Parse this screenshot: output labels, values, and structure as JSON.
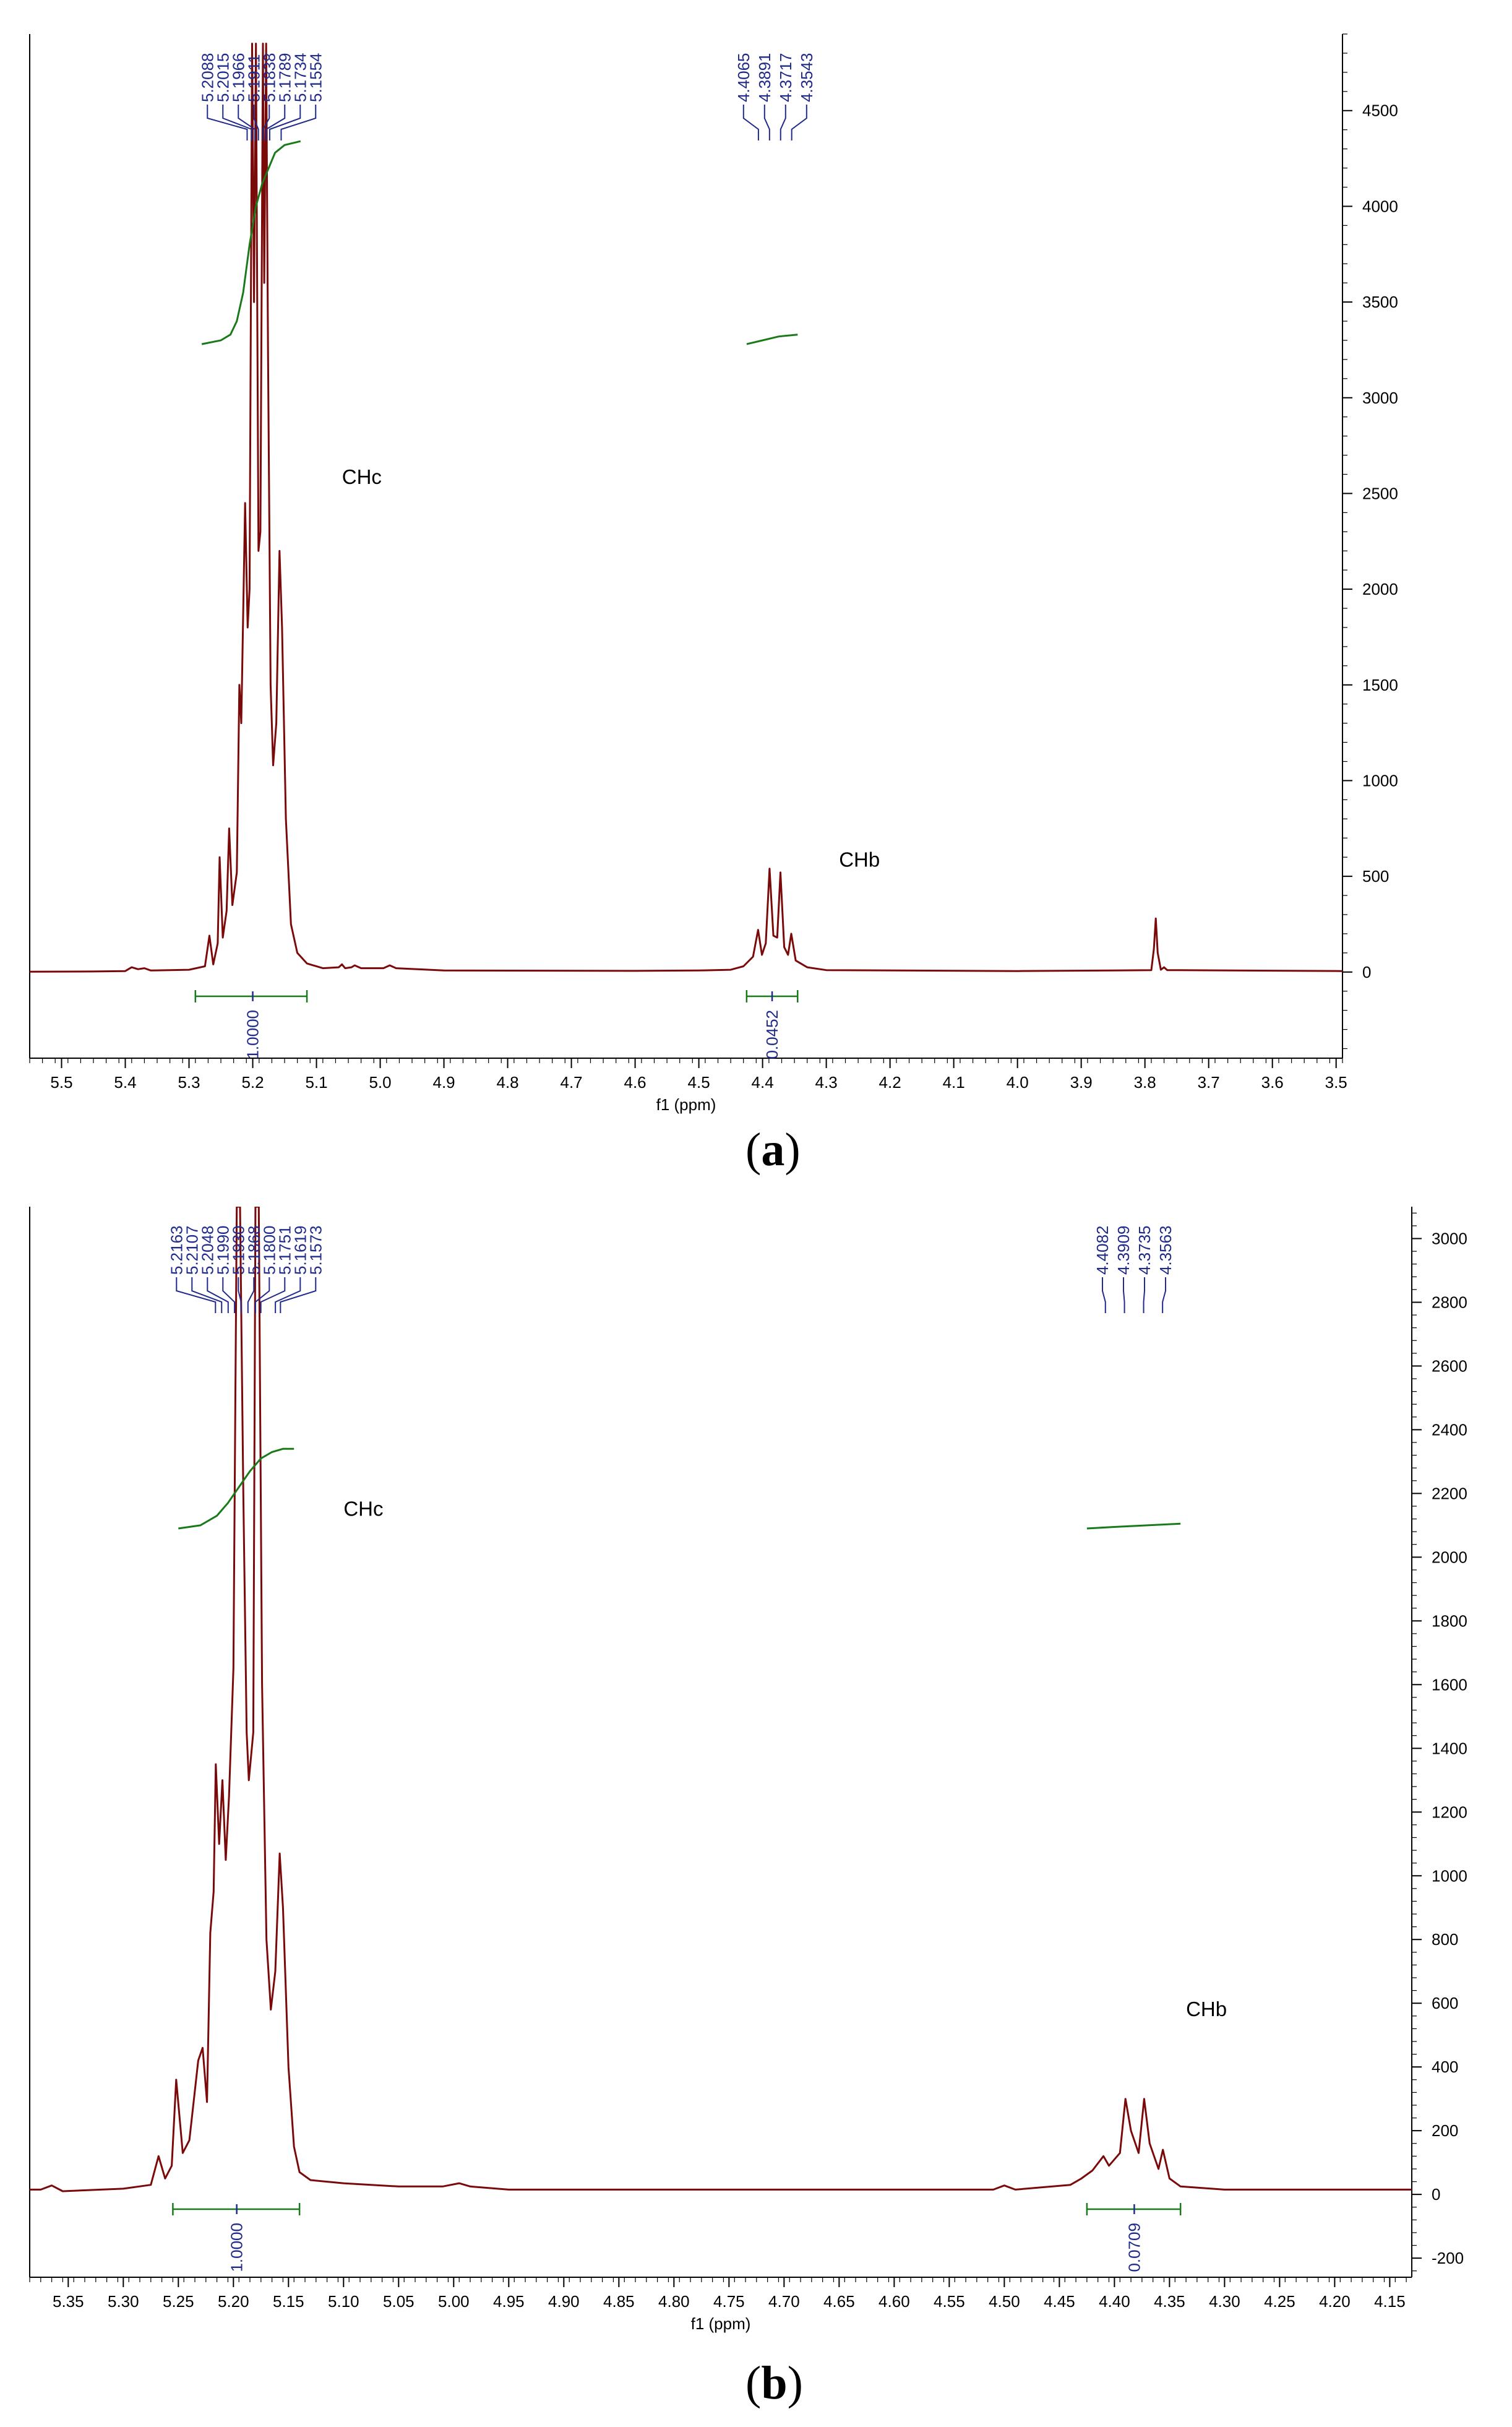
{
  "colors": {
    "spectrum": "#7a0a0a",
    "integral": "#1a7a1a",
    "peak_label": "#1f2a8a",
    "axis": "#000000"
  },
  "chart_data": [
    {
      "panel": "a",
      "type": "line",
      "xlabel": "f1 (ppm)",
      "xlim": [
        5.55,
        3.49
      ],
      "ylim": [
        -450,
        4900
      ],
      "x_ticks": [
        "5.5",
        "5.4",
        "5.3",
        "5.2",
        "5.1",
        "5.0",
        "4.9",
        "4.8",
        "4.7",
        "4.6",
        "4.5",
        "4.4",
        "4.3",
        "4.2",
        "4.1",
        "4.0",
        "3.9",
        "3.8",
        "3.7",
        "3.6",
        "3.5"
      ],
      "x_tick_values": [
        5.5,
        5.4,
        5.3,
        5.2,
        5.1,
        5.0,
        4.9,
        4.8,
        4.7,
        4.6,
        4.5,
        4.4,
        4.3,
        4.2,
        4.1,
        4.0,
        3.9,
        3.8,
        3.7,
        3.6,
        3.5
      ],
      "y_ticks": [
        "0",
        "500",
        "1000",
        "1500",
        "2000",
        "2500",
        "3000",
        "3500",
        "4000",
        "4500"
      ],
      "y_tick_values": [
        0,
        500,
        1000,
        1500,
        2000,
        2500,
        3000,
        3500,
        4000,
        4500
      ],
      "peak_group_1": [
        "5.2088",
        "5.2015",
        "5.1966",
        "5.1911",
        "5.1838",
        "5.1789",
        "5.1734",
        "5.1554"
      ],
      "peak_group_1_values": [
        5.2088,
        5.2015,
        5.1966,
        5.1911,
        5.1838,
        5.1789,
        5.1734,
        5.1554
      ],
      "peak_group_2": [
        "4.4065",
        "4.3891",
        "4.3717",
        "4.3543"
      ],
      "peak_group_2_values": [
        4.4065,
        4.3891,
        4.3717,
        4.3543
      ],
      "annotations": [
        "CHc",
        "CHb"
      ],
      "annotation_pos": [
        [
          5.06,
          2550
        ],
        [
          4.28,
          550
        ]
      ],
      "integrals": [
        {
          "label": "1.0000",
          "from": 5.29,
          "to": 5.115,
          "marker": 5.2
        },
        {
          "label": "0.0452",
          "from": 4.425,
          "to": 4.345,
          "marker": 4.385
        }
      ],
      "integral_curves": [
        {
          "points": [
            [
              5.28,
              3280
            ],
            [
              5.25,
              3300
            ],
            [
              5.235,
              3330
            ],
            [
              5.225,
              3400
            ],
            [
              5.215,
              3550
            ],
            [
              5.205,
              3800
            ],
            [
              5.195,
              4000
            ],
            [
              5.185,
              4120
            ],
            [
              5.175,
              4200
            ],
            [
              5.165,
              4280
            ],
            [
              5.15,
              4320
            ],
            [
              5.125,
              4340
            ]
          ]
        },
        {
          "points": [
            [
              4.425,
              3280
            ],
            [
              4.4,
              3300
            ],
            [
              4.375,
              3320
            ],
            [
              4.345,
              3330
            ]
          ]
        }
      ],
      "spectrum_points": [
        [
          5.55,
          2
        ],
        [
          5.45,
          3
        ],
        [
          5.4,
          5
        ],
        [
          5.39,
          25
        ],
        [
          5.38,
          15
        ],
        [
          5.37,
          20
        ],
        [
          5.36,
          8
        ],
        [
          5.3,
          12
        ],
        [
          5.275,
          30
        ],
        [
          5.268,
          190
        ],
        [
          5.262,
          40
        ],
        [
          5.255,
          150
        ],
        [
          5.252,
          600
        ],
        [
          5.247,
          180
        ],
        [
          5.241,
          320
        ],
        [
          5.237,
          750
        ],
        [
          5.232,
          350
        ],
        [
          5.225,
          520
        ],
        [
          5.221,
          1500
        ],
        [
          5.218,
          1300
        ],
        [
          5.212,
          2450
        ],
        [
          5.208,
          1800
        ],
        [
          5.205,
          2000
        ],
        [
          5.201,
          4850
        ],
        [
          5.198,
          3500
        ],
        [
          5.195,
          4850
        ],
        [
          5.191,
          2200
        ],
        [
          5.188,
          2300
        ],
        [
          5.184,
          4850
        ],
        [
          5.182,
          3600
        ],
        [
          5.179,
          4850
        ],
        [
          5.176,
          3200
        ],
        [
          5.172,
          1500
        ],
        [
          5.168,
          1080
        ],
        [
          5.163,
          1300
        ],
        [
          5.158,
          2200
        ],
        [
          5.154,
          1800
        ],
        [
          5.148,
          800
        ],
        [
          5.14,
          250
        ],
        [
          5.13,
          100
        ],
        [
          5.115,
          45
        ],
        [
          5.09,
          20
        ],
        [
          5.065,
          25
        ],
        [
          5.06,
          40
        ],
        [
          5.055,
          20
        ],
        [
          5.045,
          25
        ],
        [
          5.04,
          35
        ],
        [
          5.03,
          20
        ],
        [
          4.995,
          20
        ],
        [
          4.985,
          35
        ],
        [
          4.975,
          20
        ],
        [
          4.9,
          8
        ],
        [
          4.6,
          6
        ],
        [
          4.5,
          8
        ],
        [
          4.45,
          12
        ],
        [
          4.43,
          30
        ],
        [
          4.415,
          80
        ],
        [
          4.407,
          220
        ],
        [
          4.401,
          90
        ],
        [
          4.395,
          150
        ],
        [
          4.389,
          540
        ],
        [
          4.383,
          190
        ],
        [
          4.377,
          180
        ],
        [
          4.372,
          520
        ],
        [
          4.366,
          130
        ],
        [
          4.36,
          90
        ],
        [
          4.355,
          200
        ],
        [
          4.348,
          60
        ],
        [
          4.33,
          25
        ],
        [
          4.3,
          10
        ],
        [
          4.0,
          5
        ],
        [
          3.85,
          8
        ],
        [
          3.79,
          10
        ],
        [
          3.786,
          120
        ],
        [
          3.783,
          280
        ],
        [
          3.78,
          100
        ],
        [
          3.775,
          12
        ],
        [
          3.77,
          25
        ],
        [
          3.765,
          10
        ],
        [
          3.49,
          5
        ]
      ]
    },
    {
      "panel": "b",
      "type": "line",
      "xlabel": "f1 (ppm)",
      "xlim": [
        5.385,
        4.13
      ],
      "ylim": [
        -260,
        3100
      ],
      "x_ticks": [
        "5.35",
        "5.30",
        "5.25",
        "5.20",
        "5.15",
        "5.10",
        "5.05",
        "5.00",
        "4.95",
        "4.90",
        "4.85",
        "4.80",
        "4.75",
        "4.70",
        "4.65",
        "4.60",
        "4.55",
        "4.50",
        "4.45",
        "4.40",
        "4.35",
        "4.30",
        "4.25",
        "4.20",
        "4.15"
      ],
      "x_tick_values": [
        5.35,
        5.3,
        5.25,
        5.2,
        5.15,
        5.1,
        5.05,
        5.0,
        4.95,
        4.9,
        4.85,
        4.8,
        4.75,
        4.7,
        4.65,
        4.6,
        4.55,
        4.5,
        4.45,
        4.4,
        4.35,
        4.3,
        4.25,
        4.2,
        4.15
      ],
      "y_ticks": [
        "-200",
        "0",
        "200",
        "400",
        "600",
        "800",
        "1000",
        "1200",
        "1400",
        "1600",
        "1800",
        "2000",
        "2200",
        "2400",
        "2600",
        "2800",
        "3000"
      ],
      "y_tick_values": [
        -200,
        0,
        200,
        400,
        600,
        800,
        1000,
        1200,
        1400,
        1600,
        1800,
        2000,
        2200,
        2400,
        2600,
        2800,
        3000
      ],
      "peak_group_1": [
        "5.2163",
        "5.2107",
        "5.2048",
        "5.1990",
        "5.1930",
        "5.1868",
        "5.1800",
        "5.1751",
        "5.1619",
        "5.1573"
      ],
      "peak_group_1_values": [
        5.2163,
        5.2107,
        5.2048,
        5.199,
        5.193,
        5.1868,
        5.18,
        5.1751,
        5.1619,
        5.1573
      ],
      "peak_group_2": [
        "4.4082",
        "4.3909",
        "4.3735",
        "4.3563"
      ],
      "peak_group_2_values": [
        4.4082,
        4.3909,
        4.3735,
        4.3563
      ],
      "annotations": [
        "CHc",
        "CHb"
      ],
      "annotation_pos": [
        [
          5.1,
          2130
        ],
        [
          4.335,
          560
        ]
      ],
      "integrals": [
        {
          "label": "1.0000",
          "from": 5.255,
          "to": 5.14,
          "marker": 5.197
        },
        {
          "label": "0.0709",
          "from": 4.425,
          "to": 4.34,
          "marker": 4.382
        }
      ],
      "integral_curves": [
        {
          "points": [
            [
              5.25,
              2090
            ],
            [
              5.23,
              2100
            ],
            [
              5.215,
              2130
            ],
            [
              5.205,
              2170
            ],
            [
              5.195,
              2220
            ],
            [
              5.185,
              2270
            ],
            [
              5.175,
              2310
            ],
            [
              5.165,
              2330
            ],
            [
              5.155,
              2340
            ],
            [
              5.145,
              2340
            ]
          ]
        },
        {
          "points": [
            [
              4.425,
              2090
            ],
            [
              4.4,
              2095
            ],
            [
              4.37,
              2100
            ],
            [
              4.34,
              2105
            ]
          ]
        }
      ],
      "spectrum_points": [
        [
          5.385,
          15
        ],
        [
          5.375,
          15
        ],
        [
          5.365,
          28
        ],
        [
          5.355,
          10
        ],
        [
          5.3,
          18
        ],
        [
          5.275,
          30
        ],
        [
          5.268,
          120
        ],
        [
          5.262,
          50
        ],
        [
          5.256,
          90
        ],
        [
          5.252,
          360
        ],
        [
          5.246,
          130
        ],
        [
          5.24,
          170
        ],
        [
          5.232,
          420
        ],
        [
          5.228,
          460
        ],
        [
          5.224,
          290
        ],
        [
          5.221,
          820
        ],
        [
          5.218,
          950
        ],
        [
          5.216,
          1350
        ],
        [
          5.213,
          1100
        ],
        [
          5.21,
          1300
        ],
        [
          5.207,
          1050
        ],
        [
          5.204,
          1250
        ],
        [
          5.2,
          1650
        ],
        [
          5.197,
          3100
        ],
        [
          5.194,
          3100
        ],
        [
          5.191,
          2200
        ],
        [
          5.188,
          1450
        ],
        [
          5.186,
          1300
        ],
        [
          5.182,
          1450
        ],
        [
          5.18,
          3100
        ],
        [
          5.177,
          3100
        ],
        [
          5.174,
          1600
        ],
        [
          5.17,
          800
        ],
        [
          5.166,
          580
        ],
        [
          5.162,
          700
        ],
        [
          5.158,
          1070
        ],
        [
          5.155,
          900
        ],
        [
          5.15,
          400
        ],
        [
          5.145,
          150
        ],
        [
          5.14,
          70
        ],
        [
          5.13,
          45
        ],
        [
          5.1,
          35
        ],
        [
          5.05,
          25
        ],
        [
          5.01,
          25
        ],
        [
          4.995,
          35
        ],
        [
          4.985,
          25
        ],
        [
          4.95,
          15
        ],
        [
          4.8,
          15
        ],
        [
          4.6,
          15
        ],
        [
          4.51,
          15
        ],
        [
          4.5,
          28
        ],
        [
          4.49,
          15
        ],
        [
          4.44,
          30
        ],
        [
          4.43,
          50
        ],
        [
          4.42,
          75
        ],
        [
          4.41,
          120
        ],
        [
          4.405,
          90
        ],
        [
          4.395,
          130
        ],
        [
          4.39,
          300
        ],
        [
          4.385,
          200
        ],
        [
          4.378,
          130
        ],
        [
          4.373,
          300
        ],
        [
          4.368,
          160
        ],
        [
          4.36,
          80
        ],
        [
          4.356,
          140
        ],
        [
          4.35,
          50
        ],
        [
          4.34,
          25
        ],
        [
          4.3,
          15
        ],
        [
          4.25,
          15
        ],
        [
          4.13,
          15
        ]
      ]
    }
  ],
  "panel_labels": [
    "(a)",
    "(b)"
  ],
  "panel_label_letters": [
    "a",
    "b"
  ]
}
